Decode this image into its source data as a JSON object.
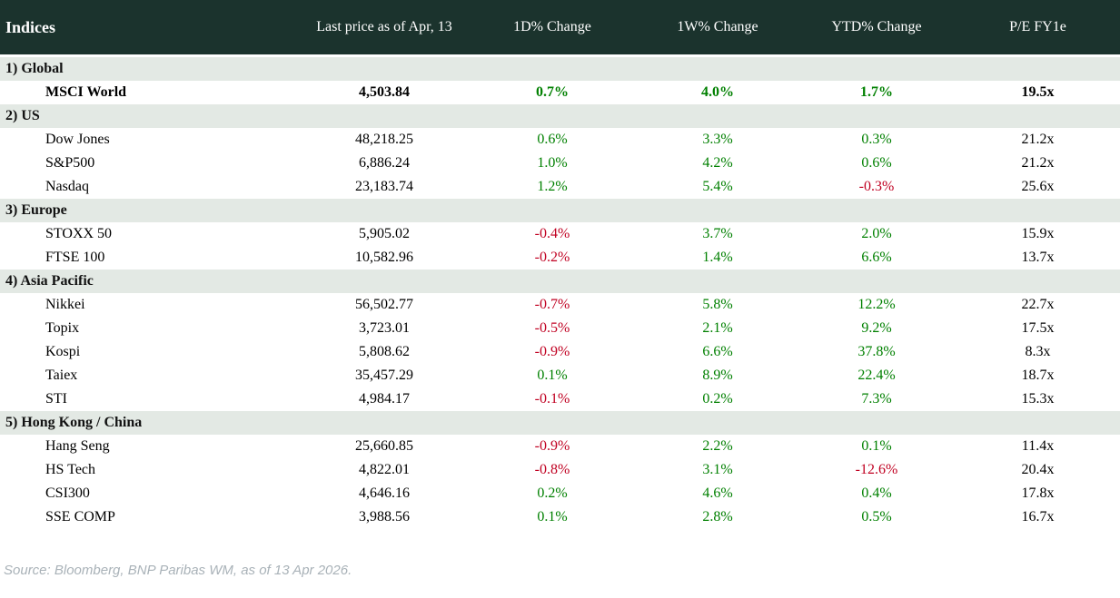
{
  "header": {
    "col_indices": "Indices",
    "col_last_price": "Last price as of Apr, 13",
    "col_1d": "1D% Change",
    "col_1w": "1W% Change",
    "col_ytd": "YTD% Change",
    "col_pe": "P/E FY1e"
  },
  "table": {
    "sections": [
      {
        "label": "1) Global",
        "rows": [
          {
            "name": "MSCI World",
            "last_price": "4,503.84",
            "chg_1d": "0.7%",
            "chg_1w": "4.0%",
            "chg_ytd": "1.7%",
            "pe": "19.5x",
            "bold": true
          }
        ]
      },
      {
        "label": "2) US",
        "rows": [
          {
            "name": "Dow Jones",
            "last_price": "48,218.25",
            "chg_1d": "0.6%",
            "chg_1w": "3.3%",
            "chg_ytd": "0.3%",
            "pe": "21.2x"
          },
          {
            "name": "S&P500",
            "last_price": "6,886.24",
            "chg_1d": "1.0%",
            "chg_1w": "4.2%",
            "chg_ytd": "0.6%",
            "pe": "21.2x"
          },
          {
            "name": "Nasdaq",
            "last_price": "23,183.74",
            "chg_1d": "1.2%",
            "chg_1w": "5.4%",
            "chg_ytd": "-0.3%",
            "pe": "25.6x"
          }
        ]
      },
      {
        "label": "3) Europe",
        "rows": [
          {
            "name": "STOXX 50",
            "last_price": "5,905.02",
            "chg_1d": "-0.4%",
            "chg_1w": "3.7%",
            "chg_ytd": "2.0%",
            "pe": "15.9x"
          },
          {
            "name": "FTSE 100",
            "last_price": "10,582.96",
            "chg_1d": "-0.2%",
            "chg_1w": "1.4%",
            "chg_ytd": "6.6%",
            "pe": "13.7x"
          }
        ]
      },
      {
        "label": "4) Asia Pacific",
        "rows": [
          {
            "name": "Nikkei",
            "last_price": "56,502.77",
            "chg_1d": "-0.7%",
            "chg_1w": "5.8%",
            "chg_ytd": "12.2%",
            "pe": "22.7x"
          },
          {
            "name": "Topix",
            "last_price": "3,723.01",
            "chg_1d": "-0.5%",
            "chg_1w": "2.1%",
            "chg_ytd": "9.2%",
            "pe": "17.5x"
          },
          {
            "name": "Kospi",
            "last_price": "5,808.62",
            "chg_1d": "-0.9%",
            "chg_1w": "6.6%",
            "chg_ytd": "37.8%",
            "pe": "8.3x"
          },
          {
            "name": "Taiex",
            "last_price": "35,457.29",
            "chg_1d": "0.1%",
            "chg_1w": "8.9%",
            "chg_ytd": "22.4%",
            "pe": "18.7x"
          },
          {
            "name": "STI",
            "last_price": "4,984.17",
            "chg_1d": "-0.1%",
            "chg_1w": "0.2%",
            "chg_ytd": "7.3%",
            "pe": "15.3x"
          }
        ]
      },
      {
        "label": "5) Hong Kong / China",
        "rows": [
          {
            "name": "Hang Seng",
            "last_price": "25,660.85",
            "chg_1d": "-0.9%",
            "chg_1w": "2.2%",
            "chg_ytd": "0.1%",
            "pe": "11.4x"
          },
          {
            "name": "HS Tech",
            "last_price": "4,822.01",
            "chg_1d": "-0.8%",
            "chg_1w": "3.1%",
            "chg_ytd": "-12.6%",
            "pe": "20.4x"
          },
          {
            "name": "CSI300",
            "last_price": "4,646.16",
            "chg_1d": "0.2%",
            "chg_1w": "4.6%",
            "chg_ytd": "0.4%",
            "pe": "17.8x"
          },
          {
            "name": "SSE COMP",
            "last_price": "3,988.56",
            "chg_1d": "0.1%",
            "chg_1w": "2.8%",
            "chg_ytd": "0.5%",
            "pe": "16.7x"
          }
        ]
      }
    ]
  },
  "footer": {
    "source": "Source: Bloomberg, BNP Paribas WM, as of 13 Apr 2026."
  },
  "colors": {
    "header_bg": "#1b332d",
    "header_text": "#ffffff",
    "section_bg": "#e3e9e4",
    "positive": "#008000",
    "negative": "#c00021",
    "footer_text": "#a9b2b8"
  }
}
